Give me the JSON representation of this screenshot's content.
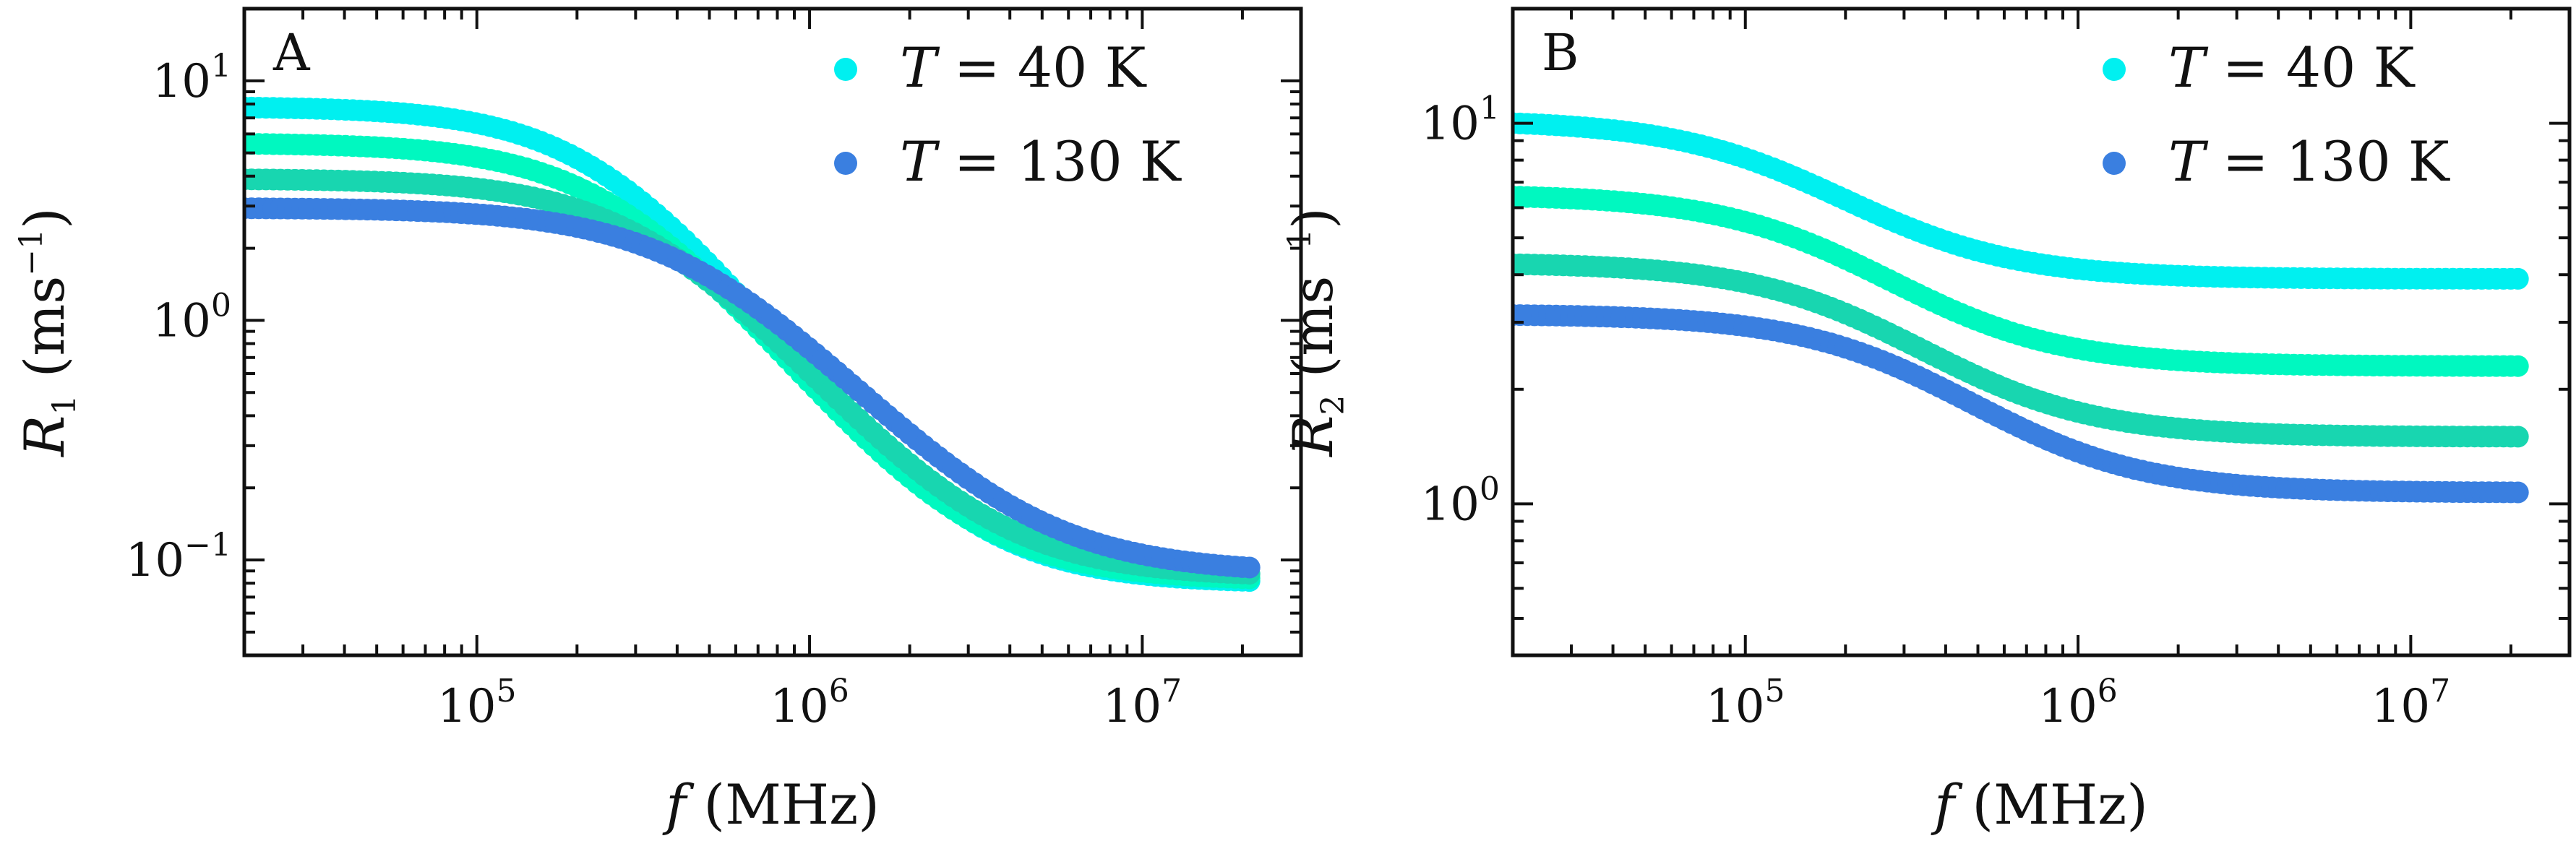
{
  "chart_data": [
    {
      "type": "scatter",
      "panel_label": "A",
      "xlabel": {
        "var": "f",
        "unit": "(MHz)"
      },
      "ylabel": {
        "var": "R",
        "sub": "1",
        "unit_pre": "(ms",
        "unit_sup": "−1",
        "unit_post": ")"
      },
      "x_scale": "log",
      "y_scale": "log",
      "xlim": [
        20000,
        30000000
      ],
      "ylim": [
        0.04,
        20
      ],
      "x_ticks": [
        {
          "base": "10",
          "exp": "5",
          "value": 100000
        },
        {
          "base": "10",
          "exp": "6",
          "value": 1000000
        },
        {
          "base": "10",
          "exp": "7",
          "value": 10000000
        }
      ],
      "y_ticks": [
        {
          "base": "10",
          "exp": "1",
          "value": 10
        },
        {
          "base": "10",
          "exp": "0",
          "value": 1
        },
        {
          "base": "10",
          "exp": "−1",
          "value": 0.1
        }
      ],
      "legend": {
        "position": "top-right",
        "entries": [
          {
            "var": "T",
            "eq": " = 40 K",
            "color": "#00f0f0"
          },
          {
            "var": "T",
            "eq": " = 130 K",
            "color": "#3a7fe0"
          }
        ]
      },
      "series": [
        {
          "color": "#00f0f0",
          "x_range": [
            20000,
            21000000
          ],
          "plateau_low": 7.8,
          "plateau_high": 0.08,
          "corner": 250000,
          "power": 1.9
        },
        {
          "color": "#00f8c0",
          "x_range": [
            20000,
            21000000
          ],
          "plateau_low": 5.5,
          "plateau_high": 0.082,
          "corner": 280000,
          "power": 1.85
        },
        {
          "color": "#18d6b0",
          "x_range": [
            20000,
            21000000
          ],
          "plateau_low": 3.9,
          "plateau_high": 0.085,
          "corner": 360000,
          "power": 1.8
        },
        {
          "color": "#3a7fe0",
          "x_range": [
            20000,
            21000000
          ],
          "plateau_low": 2.95,
          "plateau_high": 0.088,
          "corner": 500000,
          "power": 1.7
        }
      ]
    },
    {
      "type": "scatter",
      "panel_label": "B",
      "xlabel": {
        "var": "f",
        "unit": "(MHz)"
      },
      "ylabel": {
        "var": "R",
        "sub": "2",
        "unit_pre": "(ms",
        "unit_sup": "−1",
        "unit_post": ")"
      },
      "x_scale": "log",
      "y_scale": "log",
      "xlim": [
        20000,
        30000000
      ],
      "ylim": [
        0.4,
        20
      ],
      "x_ticks": [
        {
          "base": "10",
          "exp": "5",
          "value": 100000
        },
        {
          "base": "10",
          "exp": "6",
          "value": 1000000
        },
        {
          "base": "10",
          "exp": "7",
          "value": 10000000
        }
      ],
      "y_ticks": [
        {
          "base": "10",
          "exp": "1",
          "value": 10
        },
        {
          "base": "10",
          "exp": "0",
          "value": 1
        }
      ],
      "legend": {
        "position": "top-right",
        "entries": [
          {
            "var": "T",
            "eq": " = 40 K",
            "color": "#00f0f0"
          },
          {
            "var": "T",
            "eq": " = 130 K",
            "color": "#3a7fe0"
          }
        ]
      },
      "series": [
        {
          "color": "#00f0f0",
          "x_range": [
            20000,
            21000000
          ],
          "plateau_low": 10.2,
          "plateau_high": 3.9,
          "corner": 150000,
          "power": 1.7
        },
        {
          "color": "#00f8c0",
          "x_range": [
            20000,
            21000000
          ],
          "plateau_low": 6.5,
          "plateau_high": 2.3,
          "corner": 200000,
          "power": 1.7
        },
        {
          "color": "#18d6b0",
          "x_range": [
            20000,
            21000000
          ],
          "plateau_low": 4.3,
          "plateau_high": 1.5,
          "corner": 250000,
          "power": 1.7
        },
        {
          "color": "#3a7fe0",
          "x_range": [
            20000,
            21000000
          ],
          "plateau_low": 3.15,
          "plateau_high": 1.07,
          "corner": 350000,
          "power": 1.7
        }
      ]
    }
  ]
}
